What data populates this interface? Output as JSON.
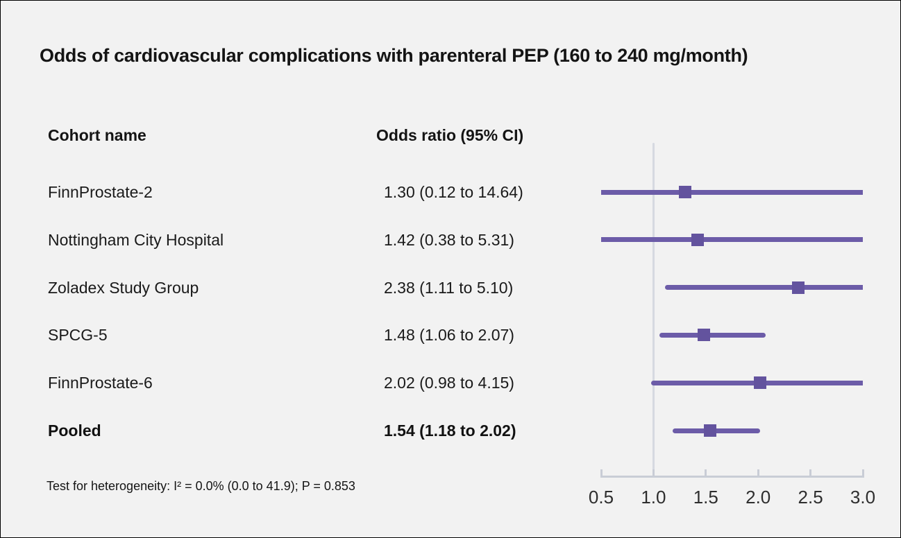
{
  "title": "Odds of cardiovascular complications with parenteral PEP (160 to 240 mg/month)",
  "table": {
    "cohort_header": "Cohort name",
    "or_header": "Odds ratio (95% CI)"
  },
  "footnote": "Test for heterogeneity: I² = 0.0% (0.0 to 41.9); P = 0.853",
  "chart_data": {
    "type": "forest",
    "title": "Odds of cardiovascular complications with parenteral PEP (160 to 240 mg/month)",
    "x_axis": {
      "scale": "linear",
      "xlim": [
        0.5,
        3.0
      ],
      "ticks": [
        0.5,
        1.0,
        1.5,
        2.0,
        2.5,
        3.0
      ],
      "tick_labels": [
        "0.5",
        "1.0",
        "1.5",
        "2.0",
        "2.5",
        "3.0"
      ],
      "reference_line": 1.0
    },
    "legend": "none",
    "grid": false,
    "rows": [
      {
        "label": "FinnProstate-2",
        "or": 1.3,
        "ci_low": 0.12,
        "ci_high": 14.64,
        "or_text": "1.30 (0.12 to 14.64)",
        "pooled": false
      },
      {
        "label": "Nottingham City Hospital",
        "or": 1.42,
        "ci_low": 0.38,
        "ci_high": 5.31,
        "or_text": "1.42 (0.38 to 5.31)",
        "pooled": false
      },
      {
        "label": "Zoladex Study Group",
        "or": 2.38,
        "ci_low": 1.11,
        "ci_high": 5.1,
        "or_text": "2.38 (1.11 to 5.10)",
        "pooled": false
      },
      {
        "label": "SPCG-5",
        "or": 1.48,
        "ci_low": 1.06,
        "ci_high": 2.07,
        "or_text": "1.48 (1.06 to 2.07)",
        "pooled": false
      },
      {
        "label": "FinnProstate-6",
        "or": 2.02,
        "ci_low": 0.98,
        "ci_high": 4.15,
        "or_text": "2.02 (0.98 to 4.15)",
        "pooled": false
      },
      {
        "label": "Pooled",
        "or": 1.54,
        "ci_low": 1.18,
        "ci_high": 2.02,
        "or_text": "1.54 (1.18 to 2.02)",
        "pooled": true
      }
    ]
  },
  "colors": {
    "background": "#f2f2f2",
    "ci_line": "#6c5ca8",
    "marker": "#63539e",
    "reference_line": "#d6d9e1",
    "axis_line": "#c9cdd6",
    "text": "#161616",
    "tick_text": "#2e2e2e"
  }
}
